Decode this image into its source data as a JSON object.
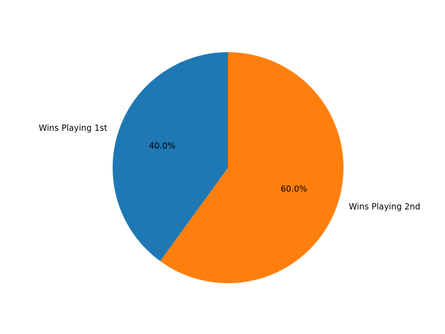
{
  "chart_data": {
    "type": "pie",
    "title": "",
    "slices": [
      {
        "label": "Wins Playing 1st",
        "value": 40.0,
        "pct_label": "40.0%",
        "color": "#1f77b4"
      },
      {
        "label": "Wins Playing 2nd",
        "value": 60.0,
        "pct_label": "60.0%",
        "color": "#ff7f0e"
      }
    ],
    "start_angle_deg": 90,
    "direction": "counterclockwise",
    "legend": "none"
  }
}
